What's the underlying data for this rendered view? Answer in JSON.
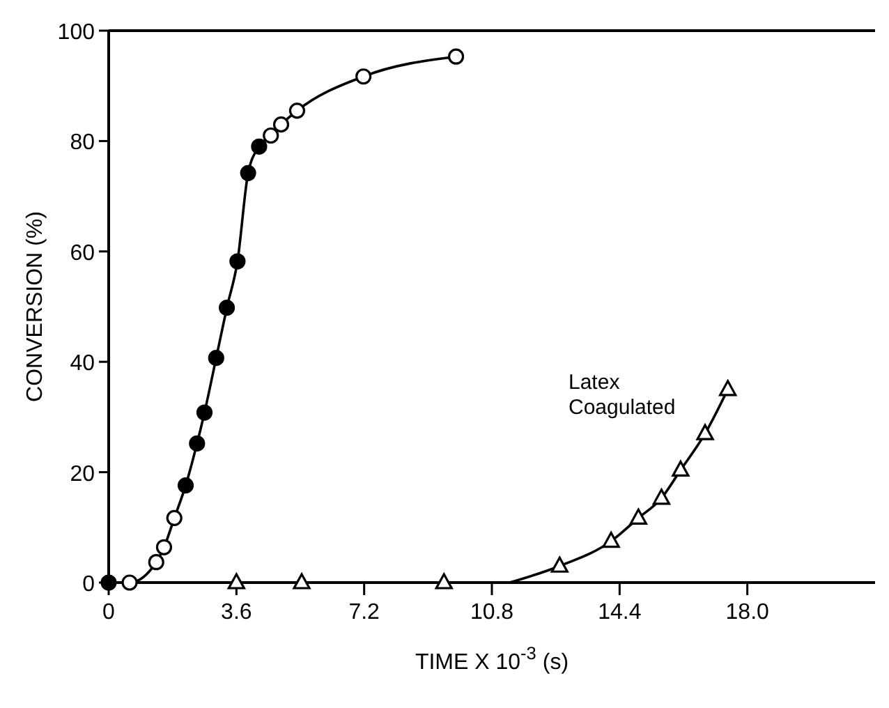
{
  "chart_data": {
    "type": "scatter",
    "xlabel": "TIME X 10$^{-3}$ (s)",
    "ylabel": "CONVERSION (%)",
    "xlim": [
      0,
      21.6
    ],
    "ylim": [
      0,
      100
    ],
    "xticks": [
      0,
      3.6,
      7.2,
      10.8,
      14.4,
      {
        "value": 18,
        "label": "18.0"
      }
    ],
    "yticks": [
      0,
      20,
      40,
      60,
      80,
      100
    ],
    "grid": false,
    "series": [
      {
        "type": "line",
        "marker": "none",
        "color": "#000000",
        "x": [
          0,
          0.59,
          1.34,
          1.56,
          1.85,
          2.17,
          2.49,
          2.7,
          3.03,
          3.33,
          3.63,
          3.93,
          4.24,
          4.57,
          4.86,
          5.31,
          7.18,
          9.79
        ],
        "values": [
          0,
          0,
          3.7,
          6.4,
          11.7,
          17.6,
          25.2,
          30.8,
          40.7,
          49.8,
          58.2,
          74.2,
          79,
          81,
          83,
          85.5,
          91.7,
          95.3
        ]
      },
      {
        "type": "line",
        "marker": "none",
        "color": "#000000",
        "x": [
          11.3,
          12.71,
          14.16,
          14.93,
          15.58,
          16.12,
          16.81,
          17.45
        ],
        "values": [
          0,
          3,
          7.5,
          11.7,
          15.3,
          20.4,
          27,
          35
        ]
      },
      {
        "marker": "triangle",
        "color": "#ffffff",
        "x": [
          3.6,
          5.44,
          9.45,
          12.71,
          14.16,
          14.93,
          15.58,
          16.12,
          16.81,
          17.45
        ],
        "values": [
          0,
          0,
          0,
          3,
          7.5,
          11.7,
          15.3,
          20.4,
          27,
          35
        ]
      },
      {
        "marker": "circle",
        "color": "#ffffff",
        "x": [
          0.59,
          1.34,
          1.56,
          1.85,
          4.57,
          4.86,
          5.31,
          7.18,
          9.79
        ],
        "values": [
          0,
          3.7,
          6.4,
          11.7,
          81,
          83,
          85.5,
          91.7,
          95.3
        ]
      },
      {
        "marker": "circle",
        "color": "#000000",
        "x": [
          0,
          2.17,
          2.49,
          2.7,
          3.03,
          3.33,
          3.63,
          3.93,
          4.24
        ],
        "values": [
          0,
          17.6,
          25.2,
          30.8,
          40.7,
          49.8,
          58.2,
          74.2,
          79
        ]
      }
    ],
    "annotations": [
      "Latex\nCoagulated"
    ]
  }
}
